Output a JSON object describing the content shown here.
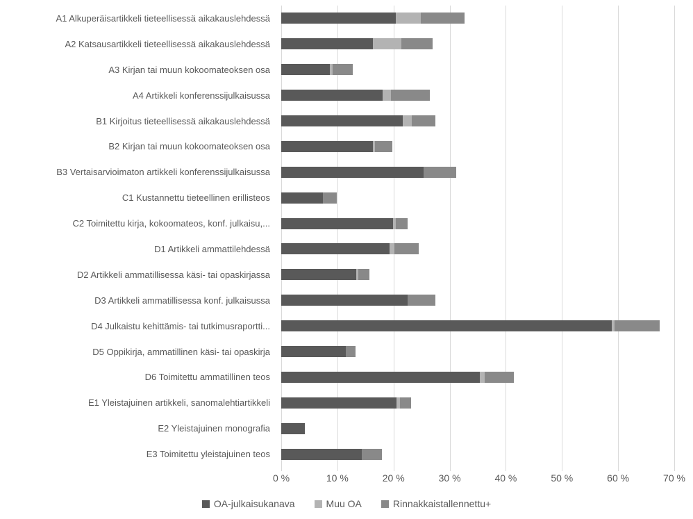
{
  "chart_data": {
    "type": "bar",
    "orientation": "horizontal",
    "stacked": true,
    "title": "",
    "xlabel": "",
    "ylabel": "",
    "grid": true,
    "categories": [
      "A1 Alkuperäisartikkeli tieteellisessä aikakauslehdessä",
      "A2 Katsausartikkeli tieteellisessä aikakauslehdessä",
      "A3 Kirjan tai muun kokoomateoksen osa",
      "A4 Artikkeli konferenssijulkaisussa",
      "B1 Kirjoitus tieteellisessä aikakauslehdessä",
      "B2 Kirjan tai muun kokoomateoksen osa",
      "B3 Vertaisarvioimaton artikkeli konferenssijulkaisussa",
      "C1 Kustannettu tieteellinen erillisteos",
      "C2 Toimitettu kirja, kokoomateos, konf. julkaisu,...",
      "D1 Artikkeli ammattilehdessä",
      "D2 Artikkeli ammatillisessa käsi- tai opaskirjassa",
      "D3 Artikkeli ammatillisessa konf. julkaisussa",
      "D4 Julkaistu kehittämis- tai tutkimusraportti...",
      "D5 Oppikirja, ammatillinen käsi- tai opaskirja",
      "D6 Toimitettu ammatillinen teos",
      "E1 Yleistajuinen artikkeli, sanomalehtiartikkeli",
      "E2 Yleistajuinen monografia",
      "E3 Toimitettu yleistajuinen teos"
    ],
    "series": [
      {
        "name": "OA-julkaisukanava",
        "color": "#595959",
        "values": [
          20.4,
          16.3,
          8.7,
          18.1,
          21.6,
          16.3,
          25.4,
          7.4,
          19.9,
          19.3,
          13.4,
          22.5,
          58.9,
          11.5,
          35.4,
          20.5,
          4.2,
          14.3
        ]
      },
      {
        "name": "Muu OA",
        "color": "#b3b3b3",
        "values": [
          4.5,
          5.1,
          0.4,
          1.4,
          1.6,
          0.4,
          0,
          0,
          0.5,
          0.8,
          0.3,
          0,
          0.5,
          0,
          0.9,
          0.6,
          0,
          0
        ]
      },
      {
        "name": "Rinnakkaistallennettu+",
        "color": "#898989",
        "values": [
          7.7,
          5.6,
          3.6,
          7.0,
          4.2,
          3.1,
          5.8,
          2.5,
          2.1,
          4.4,
          2.0,
          4.9,
          8.0,
          1.7,
          5.1,
          2.0,
          0,
          3.6
        ]
      }
    ],
    "x_axis": {
      "tick_labels": [
        "0 %",
        "10 %",
        "20 %",
        "30 %",
        "40 %",
        "50 %",
        "60 %",
        "70 %"
      ],
      "tick_values": [
        0,
        10,
        20,
        30,
        40,
        50,
        60,
        70
      ],
      "max": 70
    },
    "legend_position": "bottom",
    "gridline_color": "#d9d9d9",
    "label_color": "#595959"
  }
}
